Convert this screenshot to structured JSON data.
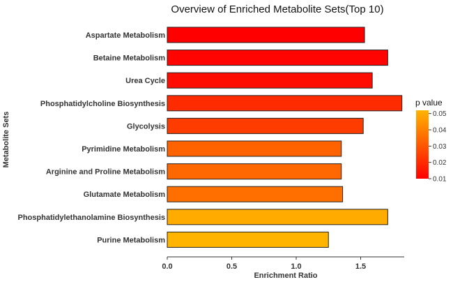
{
  "chart_data": {
    "type": "bar",
    "orientation": "horizontal",
    "title": "Overview of Enriched Metabolite Sets(Top 10)",
    "xlabel": "Enrichment Ratio",
    "ylabel": "Metabolite Sets",
    "xlim": [
      0,
      1.82
    ],
    "xticks": [
      "0.0",
      "0.5",
      "1.0",
      "1.5"
    ],
    "grid": false,
    "categories": [
      "Aspartate Metabolism",
      "Betaine Metabolism",
      "Urea Cycle",
      "Phosphatidylcholine Biosynthesis",
      "Glycolysis",
      "Pyrimidine Metabolism",
      "Arginine and Proline Metabolism",
      "Glutamate Metabolism",
      "Phosphatidylethanolamine Biosynthesis",
      "Purine Metabolism"
    ],
    "values": [
      1.53,
      1.71,
      1.59,
      1.82,
      1.52,
      1.35,
      1.35,
      1.36,
      1.71,
      1.25
    ],
    "p_values": [
      0.01,
      0.011,
      0.013,
      0.02,
      0.024,
      0.033,
      0.034,
      0.036,
      0.05,
      0.052
    ],
    "legend": {
      "title": "p value",
      "placement": "right",
      "ticks": [
        "0.05",
        "0.04",
        "0.03",
        "0.02",
        "0.01"
      ],
      "range": [
        0.01,
        0.052
      ],
      "color_low": "#ff0000",
      "color_high": "#ffb400"
    }
  }
}
